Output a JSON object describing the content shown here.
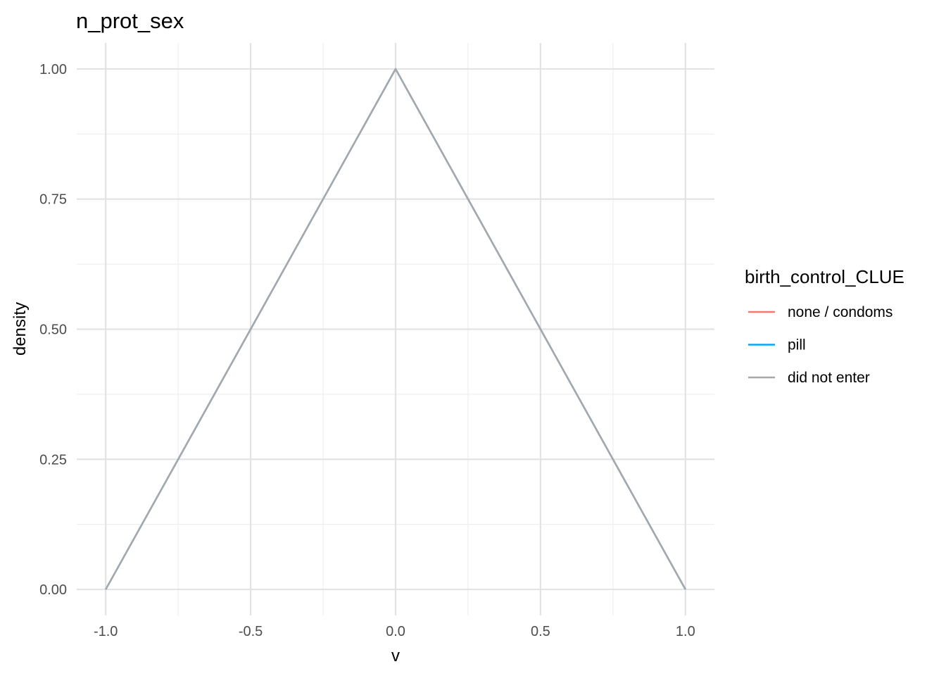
{
  "chart_data": {
    "type": "line",
    "title": "n_prot_sex",
    "xlabel": "v",
    "ylabel": "density",
    "xlim": [
      -1.1,
      1.1
    ],
    "ylim": [
      -0.05,
      1.05
    ],
    "x_ticks": [
      -1.0,
      -0.5,
      0.0,
      0.5,
      1.0
    ],
    "x_tick_labels": [
      "-1.0",
      "-0.5",
      "0.0",
      "0.5",
      "1.0"
    ],
    "x_minor_ticks": [
      -0.75,
      -0.25,
      0.25,
      0.75
    ],
    "y_ticks": [
      0.0,
      0.25,
      0.5,
      0.75,
      1.0
    ],
    "y_tick_labels": [
      "0.00",
      "0.25",
      "0.50",
      "0.75",
      "1.00"
    ],
    "y_minor_ticks": [
      0.125,
      0.375,
      0.625,
      0.875
    ],
    "grid": true,
    "legend": {
      "title": "birth_control_CLUE",
      "position": "right"
    },
    "series": [
      {
        "name": "none / condoms",
        "color": "#f8766d",
        "x": [
          -1.0,
          0.0,
          1.0
        ],
        "y": [
          0.0,
          1.0,
          0.0
        ]
      },
      {
        "name": "pill",
        "color": "#00a9ff",
        "x": [
          -1.0,
          0.0,
          1.0
        ],
        "y": [
          0.0,
          1.0,
          0.0
        ]
      },
      {
        "name": "did not enter",
        "color": "#a8a8a8",
        "x": [
          -1.0,
          0.0,
          1.0
        ],
        "y": [
          0.0,
          1.0,
          0.0
        ]
      }
    ]
  }
}
